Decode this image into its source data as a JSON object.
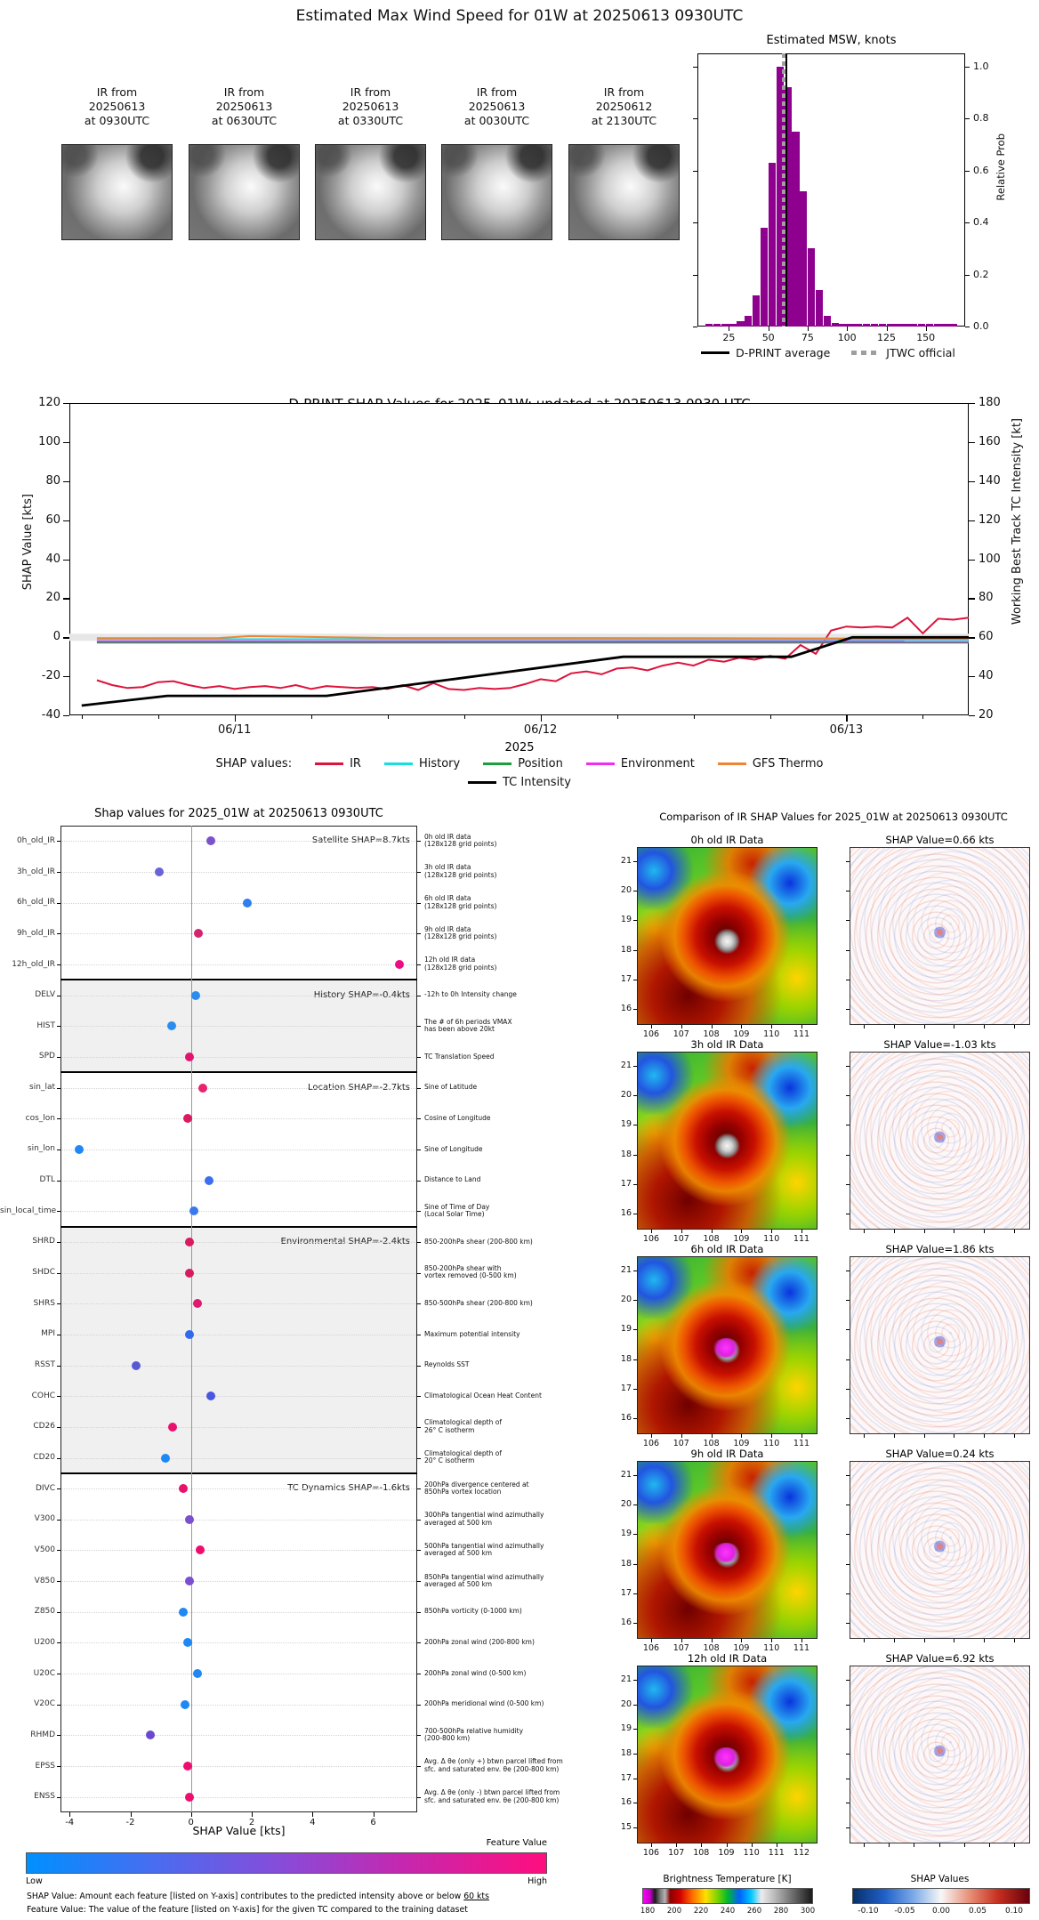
{
  "page": {
    "title": "Estimated Max Wind Speed for 01W at 20250613 0930UTC"
  },
  "thumbnails": [
    {
      "caption": [
        "IR from",
        "20250613",
        "at 0930UTC"
      ]
    },
    {
      "caption": [
        "IR from",
        "20250613",
        "at 0630UTC"
      ]
    },
    {
      "caption": [
        "IR from",
        "20250613",
        "at 0330UTC"
      ]
    },
    {
      "caption": [
        "IR from",
        "20250613",
        "at 0030UTC"
      ]
    },
    {
      "caption": [
        "IR from",
        "20250612",
        "at 2130UTC"
      ]
    }
  ],
  "histogram": {
    "title": "Estimated MSW, knots",
    "ylabel": "Relative Prob",
    "bar_color": "#8e008e",
    "legend": [
      {
        "label": "D-PRINT average",
        "swatch": "solid-black"
      },
      {
        "label": "JTWC official",
        "swatch": "dashed-gray"
      }
    ]
  },
  "timeseries": {
    "title": "D-PRINT SHAP Values for 2025_01W: updated at 20250613 0930 UTC",
    "ylabel_left": "SHAP Value [kts]",
    "ylabel_right": "Working Best Track TC Intensity [kt]",
    "xlabel": "2025",
    "legend_prefix": "SHAP values:"
  },
  "dotplot": {
    "title": "Shap values for 2025_01W at 20250613 0930UTC",
    "xlabel": "SHAP Value [kts]",
    "colorbar_label": "Feature Value",
    "colorbar_low": "Low",
    "colorbar_high": "High",
    "footnote1_prefix": "SHAP Value: Amount each feature [listed on Y-axis] contributes to the predicted intensity above or below ",
    "footnote1_underline": "60 kts",
    "footnote2": "Feature Value: The value of the feature [listed on Y-axis] for the given TC compared to the training dataset"
  },
  "comparison": {
    "title": "Comparison of IR SHAP Values for 2025_01W at 20250613 0930UTC",
    "bt_colorbar_label": "Brightness Temperature [K]",
    "shap_colorbar_label": "SHAP Values"
  },
  "chart_data": [
    {
      "id": "msw_histogram",
      "type": "bar",
      "title": "Estimated MSW, knots",
      "xlabel": "",
      "ylabel": "Relative Prob",
      "xlim": [
        5,
        175
      ],
      "ylim": [
        0,
        1.05
      ],
      "xticks": [
        25,
        50,
        75,
        100,
        125,
        150
      ],
      "yticks": [
        "0.0",
        "0.2",
        "0.4",
        "0.6",
        "0.8",
        "1.0"
      ],
      "bin_width": 5,
      "bars": [
        {
          "x": 10,
          "h": 0.01
        },
        {
          "x": 15,
          "h": 0.01
        },
        {
          "x": 20,
          "h": 0.01
        },
        {
          "x": 25,
          "h": 0.012
        },
        {
          "x": 30,
          "h": 0.02
        },
        {
          "x": 35,
          "h": 0.04
        },
        {
          "x": 40,
          "h": 0.12
        },
        {
          "x": 45,
          "h": 0.38
        },
        {
          "x": 50,
          "h": 0.63
        },
        {
          "x": 55,
          "h": 1.0
        },
        {
          "x": 60,
          "h": 0.92
        },
        {
          "x": 65,
          "h": 0.75
        },
        {
          "x": 70,
          "h": 0.52
        },
        {
          "x": 75,
          "h": 0.3
        },
        {
          "x": 80,
          "h": 0.14
        },
        {
          "x": 85,
          "h": 0.04
        },
        {
          "x": 90,
          "h": 0.015
        },
        {
          "x": 95,
          "h": 0.01
        },
        {
          "x": 100,
          "h": 0.01
        },
        {
          "x": 105,
          "h": 0.01
        },
        {
          "x": 110,
          "h": 0.01
        },
        {
          "x": 115,
          "h": 0.01
        },
        {
          "x": 120,
          "h": 0.01
        },
        {
          "x": 125,
          "h": 0.01
        },
        {
          "x": 130,
          "h": 0.01
        },
        {
          "x": 135,
          "h": 0.01
        },
        {
          "x": 140,
          "h": 0.01
        },
        {
          "x": 145,
          "h": 0.01
        },
        {
          "x": 150,
          "h": 0.01
        },
        {
          "x": 155,
          "h": 0.01
        },
        {
          "x": 160,
          "h": 0.01
        },
        {
          "x": 165,
          "h": 0.01
        }
      ],
      "dprint_average_knots": 61,
      "jtwc_official_knots": 58.5
    },
    {
      "id": "shap_timeseries",
      "type": "line",
      "title": "D-PRINT SHAP Values for 2025_01W: updated at 20250613 0930 UTC",
      "xlabel": "2025",
      "xlim": [
        10.46,
        13.4
      ],
      "xtick_positions": [
        11,
        12,
        13
      ],
      "xtick_labels": [
        "06/11",
        "06/12",
        "06/13"
      ],
      "ylim_left": [
        -40,
        120
      ],
      "yticks_left": [
        120,
        100,
        80,
        60,
        40,
        20,
        0,
        -20,
        -40
      ],
      "ylim_right": [
        20,
        180
      ],
      "yticks_right": [
        180,
        160,
        140,
        120,
        100,
        80,
        60,
        40,
        20
      ],
      "series": [
        {
          "name": "IR",
          "color": "#dc143c",
          "axis": "left",
          "x": [
            10.55,
            10.6,
            10.65,
            10.7,
            10.75,
            10.8,
            10.85,
            10.9,
            10.95,
            11.0,
            11.05,
            11.1,
            11.15,
            11.2,
            11.25,
            11.3,
            11.35,
            11.4,
            11.45,
            11.5,
            11.55,
            11.6,
            11.65,
            11.7,
            11.75,
            11.8,
            11.85,
            11.9,
            11.95,
            12.0,
            12.05,
            12.1,
            12.15,
            12.2,
            12.25,
            12.3,
            12.35,
            12.4,
            12.45,
            12.5,
            12.55,
            12.6,
            12.65,
            12.7,
            12.75,
            12.8,
            12.85,
            12.9,
            12.95,
            13.0,
            13.05,
            13.1,
            13.15,
            13.2,
            13.25,
            13.3,
            13.35,
            13.4
          ],
          "y": [
            -22,
            -24.5,
            -26,
            -25.5,
            -23,
            -22.5,
            -24.5,
            -26,
            -25,
            -26.5,
            -25.5,
            -25,
            -26,
            -24.5,
            -26.5,
            -25,
            -25.5,
            -26,
            -25.5,
            -26.5,
            -24.5,
            -27,
            -23.5,
            -26.5,
            -27,
            -26,
            -26.5,
            -26,
            -24,
            -21.5,
            -22.5,
            -18.5,
            -17.5,
            -19,
            -16,
            -15.5,
            -17,
            -14.5,
            -13,
            -14.5,
            -11.5,
            -12.5,
            -10.5,
            -11.5,
            -9.5,
            -11,
            -4,
            -8.5,
            3.5,
            5.5,
            5,
            5.5,
            5,
            10,
            2,
            9.5,
            9,
            10
          ]
        },
        {
          "name": "History",
          "color": "#18dede",
          "axis": "left",
          "x": [
            10.55,
            13.4
          ],
          "y": [
            -1.0,
            -1.2
          ]
        },
        {
          "name": "Position",
          "color": "#1c9e3c",
          "axis": "left",
          "x": [
            10.55,
            13.4
          ],
          "y": [
            -2.7,
            -2.7
          ]
        },
        {
          "name": "Environment",
          "color": "#f02cf0",
          "axis": "left",
          "x": [
            10.55,
            13.4
          ],
          "y": [
            -2.1,
            -2.2
          ]
        },
        {
          "name": "GFS Thermo",
          "color": "#f08434",
          "axis": "left",
          "x": [
            10.55,
            10.95,
            11.05,
            11.2,
            11.5,
            12.0,
            12.5,
            13.0,
            13.4
          ],
          "y": [
            -0.5,
            -0.4,
            0.6,
            0.3,
            -0.4,
            -0.4,
            -0.5,
            -0.6,
            -0.8
          ]
        },
        {
          "name": "TC Intensity",
          "color": "#000000",
          "axis": "right",
          "x": [
            10.5,
            10.78,
            11.3,
            12.27,
            12.82,
            13.02,
            13.4
          ],
          "y": [
            25,
            30,
            30,
            50,
            50,
            60,
            60
          ]
        }
      ]
    },
    {
      "id": "shap_dotplot",
      "type": "scatter",
      "title": "Shap values for 2025_01W at 20250613 0930UTC",
      "xlabel": "SHAP Value [kts]",
      "xlim": [
        -4.3,
        7.45
      ],
      "xticks": [
        -4,
        -2,
        0,
        2,
        4,
        6
      ],
      "groups": [
        {
          "label": "Satellite SHAP=8.7kts",
          "shaded": false,
          "rows": [
            {
              "feature": "0h_old_IR",
              "value": 0.65,
              "dot_color": "#7a52cc",
              "desc": "0h old IR data\n(128x128 grid points)"
            },
            {
              "feature": "3h_old_IR",
              "value": -1.05,
              "dot_color": "#6a62d8",
              "desc": "3h old IR data\n(128x128 grid points)"
            },
            {
              "feature": "6h_old_IR",
              "value": 1.85,
              "dot_color": "#2e7ef0",
              "desc": "6h old IR data\n(128x128 grid points)"
            },
            {
              "feature": "9h_old_IR",
              "value": 0.25,
              "dot_color": "#d4246e",
              "desc": "9h old IR data\n(128x128 grid points)"
            },
            {
              "feature": "12h_old_IR",
              "value": 6.85,
              "dot_color": "#ec0e7e",
              "desc": "12h old IR data\n(128x128 grid points)"
            }
          ]
        },
        {
          "label": "History SHAP=-0.4kts",
          "shaded": true,
          "rows": [
            {
              "feature": "DELV",
              "value": 0.15,
              "dot_color": "#2a8cf0",
              "desc": "-12h to 0h Intensity change"
            },
            {
              "feature": "HIST",
              "value": -0.65,
              "dot_color": "#2a8cf0",
              "desc": "The # of 6h periods VMAX\nhas been above 20kt"
            },
            {
              "feature": "SPD",
              "value": -0.05,
              "dot_color": "#e01570",
              "desc": "TC Translation Speed"
            }
          ]
        },
        {
          "label": "Location SHAP=-2.7kts",
          "shaded": false,
          "rows": [
            {
              "feature": "sin_lat",
              "value": 0.4,
              "dot_color": "#e8246e",
              "desc": "Sine of Latitude"
            },
            {
              "feature": "cos_lon",
              "value": -0.1,
              "dot_color": "#d81b60",
              "desc": "Cosine of Longitude"
            },
            {
              "feature": "sin_lon",
              "value": -3.7,
              "dot_color": "#1e88f5",
              "desc": "Sine of Longitude"
            },
            {
              "feature": "DTL",
              "value": 0.6,
              "dot_color": "#3d6ef0",
              "desc": "Distance to Land"
            },
            {
              "feature": "sin_local_time",
              "value": 0.1,
              "dot_color": "#3a78f0",
              "desc": "Sine of Time of Day\n(Local Solar Time)"
            }
          ]
        },
        {
          "label": "Environmental SHAP=-2.4kts",
          "shaded": true,
          "rows": [
            {
              "feature": "SHRD",
              "value": -0.05,
              "dot_color": "#d81b60",
              "desc": "850-200hPa shear (200-800 km)"
            },
            {
              "feature": "SHDC",
              "value": -0.05,
              "dot_color": "#d81b60",
              "desc": "850-200hPa shear with\nvortex removed (0-500 km)"
            },
            {
              "feature": "SHRS",
              "value": 0.2,
              "dot_color": "#e0196e",
              "desc": "850-500hPa shear (200-800 km)"
            },
            {
              "feature": "MPI",
              "value": -0.05,
              "dot_color": "#3168ee",
              "desc": "Maximum potential intensity"
            },
            {
              "feature": "RSST",
              "value": -1.8,
              "dot_color": "#5958d4",
              "desc": "Reynolds SST"
            },
            {
              "feature": "COHC",
              "value": 0.65,
              "dot_color": "#4a56dd",
              "desc": "Climatological Ocean Heat Content"
            },
            {
              "feature": "CD26",
              "value": -0.6,
              "dot_color": "#e8116e",
              "desc": "Climatological depth of\n26° C isotherm"
            },
            {
              "feature": "CD20",
              "value": -0.85,
              "dot_color": "#1e88f5",
              "desc": "Climatological depth of\n20° C isotherm"
            }
          ]
        },
        {
          "label": "TC Dynamics SHAP=-1.6kts",
          "shaded": false,
          "rows": [
            {
              "feature": "DIVC",
              "value": -0.25,
              "dot_color": "#e8116e",
              "desc": "200hPa divergence centered at\n850hPa vortex location"
            },
            {
              "feature": "V300",
              "value": -0.05,
              "dot_color": "#7a4fd0",
              "desc": "300hPa tangential wind azimuthally\naveraged at 500 km"
            },
            {
              "feature": "V500",
              "value": 0.3,
              "dot_color": "#ee0d6e",
              "desc": "500hPa tangential wind azimuthally\naveraged at 500 km"
            },
            {
              "feature": "V850",
              "value": -0.05,
              "dot_color": "#7a4fd0",
              "desc": "850hPa tangential wind azimuthally\naveraged at 500 km"
            },
            {
              "feature": "Z850",
              "value": -0.25,
              "dot_color": "#1e88f5",
              "desc": "850hPa vorticity (0-1000 km)"
            },
            {
              "feature": "U200",
              "value": -0.1,
              "dot_color": "#1e88f5",
              "desc": "200hPa zonal wind (200-800 km)"
            },
            {
              "feature": "U20C",
              "value": 0.2,
              "dot_color": "#1e88f5",
              "desc": "200hPa zonal wind (0-500 km)"
            },
            {
              "feature": "V20C",
              "value": -0.2,
              "dot_color": "#1e88f5",
              "desc": "200hPa meridional wind (0-500 km)"
            },
            {
              "feature": "RHMD",
              "value": -1.35,
              "dot_color": "#6a48d0",
              "desc": "700-500hPa relative humidity\n(200-800 km)"
            },
            {
              "feature": "EPSS",
              "value": -0.1,
              "dot_color": "#ee0d6e",
              "desc": "Avg. Δ θe (only +) btwn parcel lifted from\nsfc. and saturated env. θe (200-800 km)"
            },
            {
              "feature": "ENSS",
              "value": -0.05,
              "dot_color": "#ee0d6e",
              "desc": "Avg. Δ θe (only -) btwn parcel lifted from\nsfc. and saturated env. θe (200-800 km)"
            }
          ]
        }
      ]
    },
    {
      "id": "ir_shap_comparison",
      "type": "heatmap",
      "title": "Comparison of IR SHAP Values for 2025_01W at 20250613 0930UTC",
      "rows": [
        {
          "ir_title": "0h old IR Data",
          "shap_title": "SHAP Value=0.66 kts",
          "shap_value_kts": 0.66,
          "lat_ticks": [
            21,
            20,
            19,
            18,
            17,
            16
          ],
          "lon_ticks": [
            106,
            107,
            108,
            109,
            110,
            111
          ],
          "cold_core": false
        },
        {
          "ir_title": "3h old IR Data",
          "shap_title": "SHAP Value=-1.03 kts",
          "shap_value_kts": -1.03,
          "lat_ticks": [
            21,
            20,
            19,
            18,
            17,
            16
          ],
          "lon_ticks": [
            106,
            107,
            108,
            109,
            110,
            111
          ],
          "cold_core": false
        },
        {
          "ir_title": "6h old IR Data",
          "shap_title": "SHAP Value=1.86 kts",
          "shap_value_kts": 1.86,
          "lat_ticks": [
            21,
            20,
            19,
            18,
            17,
            16
          ],
          "lon_ticks": [
            106,
            107,
            108,
            109,
            110,
            111
          ],
          "cold_core": true
        },
        {
          "ir_title": "9h old IR Data",
          "shap_title": "SHAP Value=0.24 kts",
          "shap_value_kts": 0.24,
          "lat_ticks": [
            21,
            20,
            19,
            18,
            17,
            16
          ],
          "lon_ticks": [
            106,
            107,
            108,
            109,
            110,
            111
          ],
          "cold_core": true
        },
        {
          "ir_title": "12h old IR Data",
          "shap_title": "SHAP Value=6.92 kts",
          "shap_value_kts": 6.92,
          "lat_ticks": [
            21,
            20,
            19,
            18,
            17,
            16,
            15
          ],
          "lon_ticks": [
            106,
            107,
            108,
            109,
            110,
            111,
            112
          ],
          "cold_core": true
        }
      ],
      "bt_ticks": [
        180,
        200,
        220,
        240,
        260,
        280,
        300
      ],
      "shap_ticks": [
        "-0.10",
        "-0.05",
        "0.00",
        "0.05",
        "0.10"
      ]
    }
  ]
}
